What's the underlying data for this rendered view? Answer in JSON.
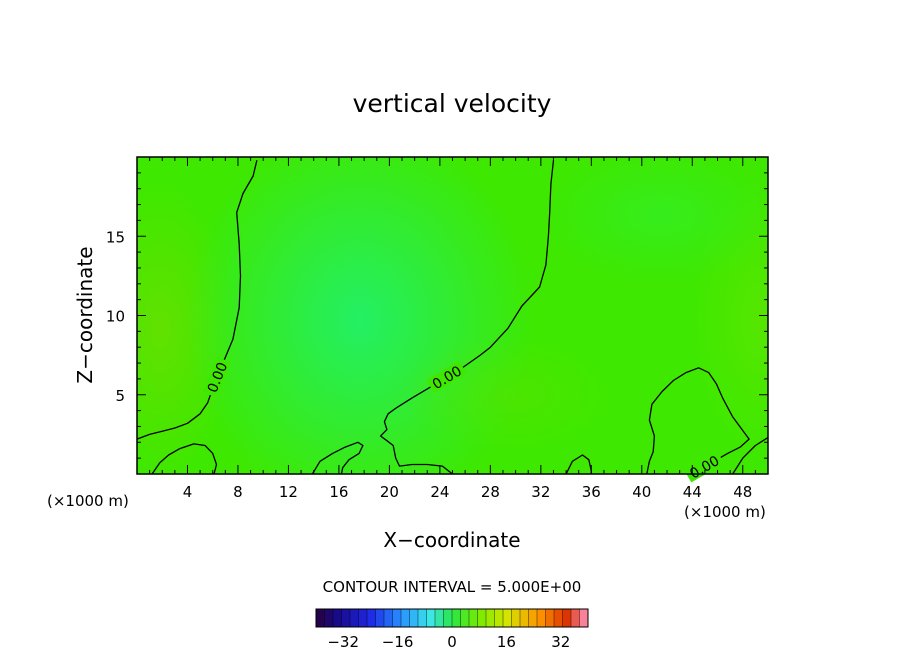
{
  "chart_data": {
    "type": "contour",
    "title": "vertical velocity",
    "xlabel": "X−coordinate",
    "ylabel": "Z−coordinate",
    "x_unit_left": "(×1000 m)",
    "x_unit_right": "(×1000 m)",
    "xlim": [
      0,
      50
    ],
    "ylim": [
      0,
      20
    ],
    "x_ticks": [
      4,
      8,
      12,
      16,
      20,
      24,
      28,
      32,
      36,
      40,
      44,
      48
    ],
    "y_ticks": [
      5,
      10,
      15
    ],
    "contour_interval_text": "CONTOUR INTERVAL = 5.000E+00",
    "contour_level_label": "0.00",
    "colorbar": {
      "min": -40,
      "max": 40,
      "step": 2.5,
      "tick_values": [
        -32,
        -16,
        0,
        16,
        32
      ],
      "tick_labels": [
        "−32",
        "−16",
        "0",
        "16",
        "32"
      ]
    },
    "zero_contours": [
      [
        [
          0.0,
          2.2
        ],
        [
          1.0,
          2.5
        ],
        [
          2.0,
          2.7
        ],
        [
          3.0,
          2.9
        ],
        [
          4.0,
          3.2
        ],
        [
          5.0,
          3.8
        ],
        [
          5.6,
          4.5
        ],
        [
          6.0,
          5.4
        ],
        [
          6.7,
          6.8
        ],
        [
          7.6,
          8.5
        ],
        [
          8.1,
          10.5
        ],
        [
          8.2,
          12.5
        ],
        [
          8.1,
          14.5
        ],
        [
          7.9,
          16.5
        ],
        [
          8.4,
          17.7
        ],
        [
          9.2,
          18.8
        ],
        [
          9.5,
          19.8
        ]
      ],
      [
        [
          1.2,
          0.0
        ],
        [
          1.8,
          0.7
        ],
        [
          2.5,
          1.2
        ],
        [
          3.4,
          1.6
        ],
        [
          4.5,
          1.9
        ],
        [
          5.4,
          1.8
        ],
        [
          6.0,
          1.3
        ],
        [
          6.3,
          0.6
        ],
        [
          6.1,
          0.0
        ]
      ],
      [
        [
          13.9,
          0.0
        ],
        [
          14.5,
          0.8
        ],
        [
          15.5,
          1.3
        ],
        [
          16.5,
          1.7
        ],
        [
          17.5,
          2.0
        ],
        [
          17.9,
          1.8
        ],
        [
          17.6,
          1.3
        ],
        [
          16.8,
          0.9
        ],
        [
          16.3,
          0.4
        ],
        [
          16.2,
          0.0
        ]
      ],
      [
        [
          33.0,
          19.8
        ],
        [
          32.8,
          18.3
        ],
        [
          32.7,
          16.5
        ],
        [
          32.6,
          15.0
        ],
        [
          32.4,
          13.2
        ],
        [
          31.9,
          11.8
        ],
        [
          30.5,
          10.6
        ],
        [
          29.4,
          9.2
        ],
        [
          28.0,
          8.0
        ],
        [
          27.2,
          7.5
        ],
        [
          25.6,
          6.6
        ],
        [
          23.5,
          5.6
        ],
        [
          21.8,
          4.8
        ],
        [
          20.6,
          4.2
        ],
        [
          19.9,
          3.8
        ],
        [
          19.6,
          3.3
        ],
        [
          19.8,
          2.8
        ],
        [
          19.3,
          2.4
        ],
        [
          19.8,
          2.1
        ],
        [
          20.3,
          1.8
        ],
        [
          20.5,
          1.0
        ],
        [
          20.8,
          0.5
        ],
        [
          21.8,
          0.6
        ],
        [
          23.0,
          0.6
        ],
        [
          24.2,
          0.5
        ],
        [
          25.0,
          0.0
        ]
      ],
      [
        [
          34.0,
          0.0
        ],
        [
          34.5,
          0.8
        ],
        [
          35.3,
          1.2
        ],
        [
          35.8,
          0.9
        ],
        [
          36.0,
          0.2
        ],
        [
          36.0,
          0.0
        ]
      ],
      [
        [
          40.4,
          0.0
        ],
        [
          40.6,
          0.8
        ],
        [
          40.9,
          1.4
        ],
        [
          41.0,
          2.4
        ],
        [
          40.6,
          3.4
        ],
        [
          40.8,
          4.4
        ],
        [
          41.6,
          5.2
        ],
        [
          42.5,
          5.9
        ],
        [
          43.5,
          6.4
        ],
        [
          44.5,
          6.7
        ],
        [
          45.3,
          6.4
        ],
        [
          45.9,
          5.7
        ],
        [
          46.4,
          4.8
        ],
        [
          47.2,
          3.6
        ],
        [
          48.5,
          2.2
        ],
        [
          47.8,
          1.7
        ],
        [
          46.8,
          1.3
        ],
        [
          45.5,
          0.7
        ],
        [
          44.4,
          0.2
        ],
        [
          44.0,
          0.0
        ]
      ],
      [
        [
          47.2,
          0.0
        ],
        [
          48.0,
          1.0
        ],
        [
          49.0,
          1.8
        ],
        [
          50.0,
          2.3
        ]
      ]
    ]
  }
}
